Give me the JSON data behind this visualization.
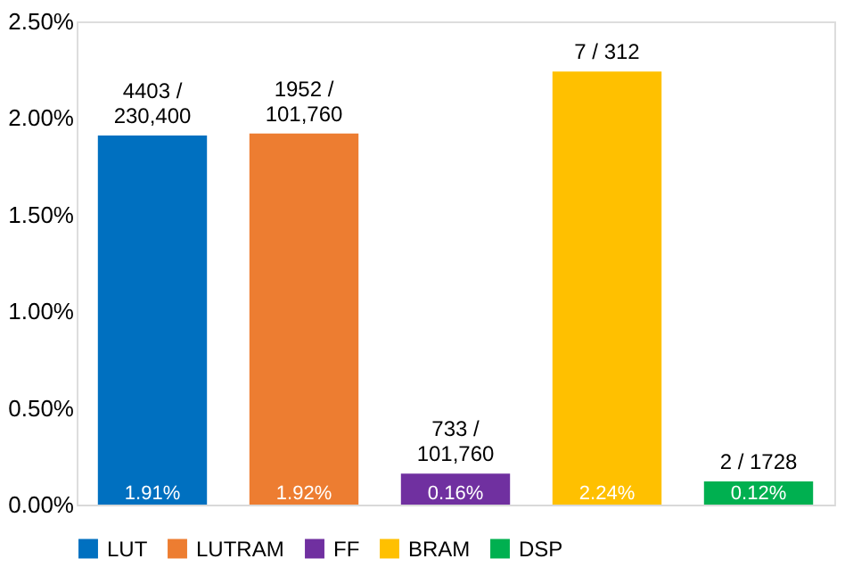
{
  "chart_data": {
    "type": "bar",
    "categories": [
      null,
      null,
      null,
      null,
      null
    ],
    "series": [
      {
        "name": "LUT",
        "color": "#0070c0",
        "values": [
          1.91,
          null,
          null,
          null,
          null
        ],
        "value_labels": [
          "1.91%",
          null,
          null,
          null,
          null
        ]
      },
      {
        "name": "LUTRAM",
        "color": "#ed7d31",
        "values": [
          null,
          1.92,
          null,
          null,
          null
        ],
        "value_labels": [
          null,
          "1.92%",
          null,
          null,
          null
        ]
      },
      {
        "name": "FF",
        "color": "#7030a0",
        "values": [
          null,
          null,
          0.16,
          null,
          null
        ],
        "value_labels": [
          null,
          null,
          "0.16%",
          null,
          null
        ]
      },
      {
        "name": "BRAM",
        "color": "#ffc000",
        "values": [
          null,
          null,
          null,
          2.24,
          null
        ],
        "value_labels": [
          null,
          null,
          null,
          "2.24%",
          null
        ]
      },
      {
        "name": "DSP",
        "color": "#00b050",
        "values": [
          null,
          null,
          null,
          null,
          0.12
        ],
        "value_labels": [
          null,
          null,
          null,
          null,
          "0.12%"
        ]
      }
    ],
    "annotations": [
      "4403 /\n230,400",
      "1952 /\n101,760",
      "733 /\n101,760",
      "7 / 312",
      "2 / 1728"
    ],
    "ylim": [
      0,
      2.5
    ],
    "yticks": [
      {
        "value": 0,
        "label": "0.00%"
      },
      {
        "value": 0.5,
        "label": "0.50%"
      },
      {
        "value": 1.0,
        "label": "1.00%"
      },
      {
        "value": 1.5,
        "label": "1.50%"
      },
      {
        "value": 2.0,
        "label": "2.00%"
      },
      {
        "value": 2.5,
        "label": "2.50%"
      }
    ],
    "tick_labels": "y",
    "stacked": true,
    "legend": "bottom",
    "grid": false
  }
}
